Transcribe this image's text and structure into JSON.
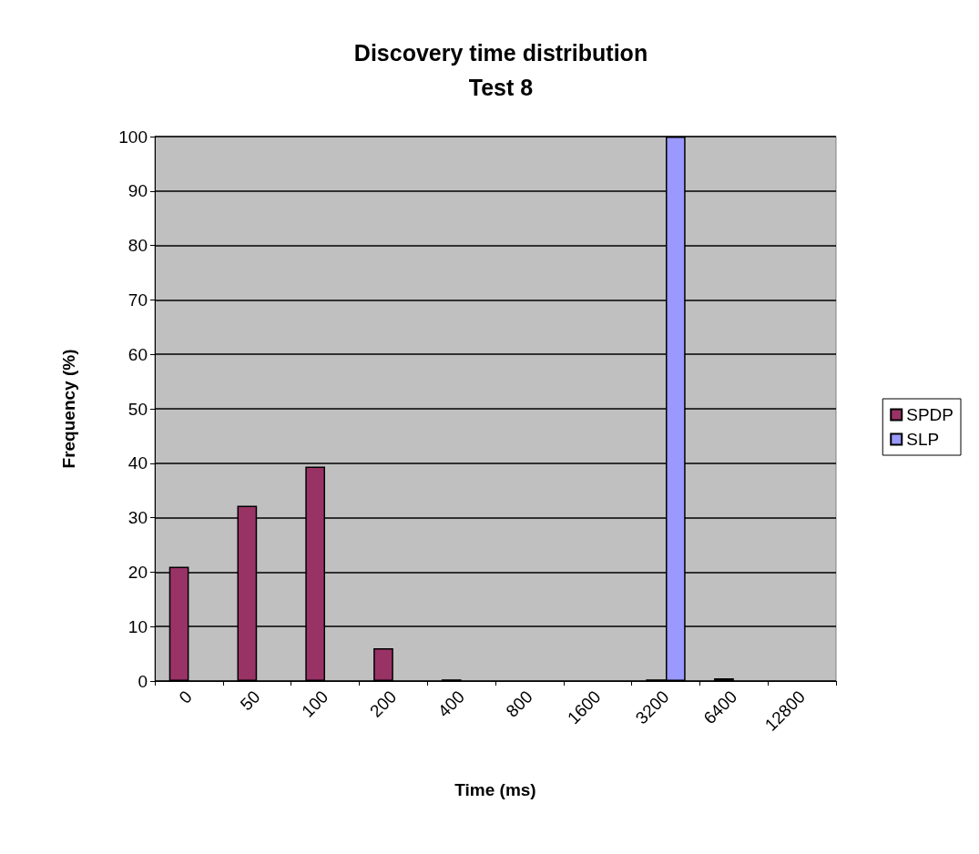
{
  "chart_data": {
    "type": "bar",
    "title": "Discovery time distribution",
    "subtitle": "Test 8",
    "xlabel": "Time (ms)",
    "ylabel": "Frequency (%)",
    "categories": [
      "0",
      "50",
      "100",
      "200",
      "400",
      "800",
      "1600",
      "3200",
      "6400",
      "12800"
    ],
    "series": [
      {
        "name": "SPDP",
        "color": "#993366",
        "values": [
          21,
          32.2,
          39.4,
          6,
          0.3,
          0,
          0,
          0.3,
          0.5,
          0
        ]
      },
      {
        "name": "SLP",
        "color": "#9999ff",
        "values": [
          0,
          0,
          0,
          0,
          0,
          0,
          0,
          100,
          0,
          0
        ]
      }
    ],
    "ylim": [
      0,
      100
    ],
    "yticks": [
      0,
      10,
      20,
      30,
      40,
      50,
      60,
      70,
      80,
      90,
      100
    ],
    "grid": "y",
    "legend": "right"
  }
}
